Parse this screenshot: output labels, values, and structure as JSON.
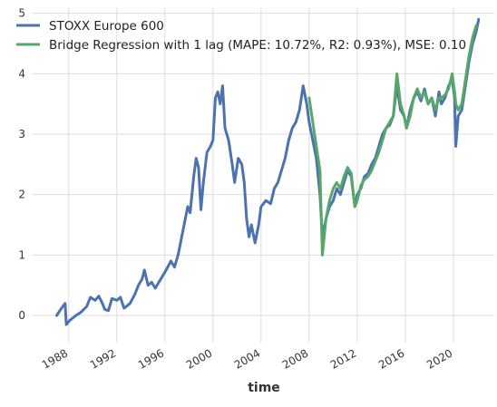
{
  "chart_data": {
    "type": "line",
    "title": "",
    "xlabel": "time",
    "ylabel": "",
    "xlim": [
      1985.0,
      2023.4
    ],
    "ylim": [
      -0.45,
      5.1
    ],
    "grid": true,
    "legend_placement": "top-left",
    "x_ticks": [
      1988,
      1992,
      1996,
      2000,
      2004,
      2008,
      2012,
      2016,
      2020
    ],
    "x_tick_labels": [
      "1988",
      "1992",
      "1996",
      "2000",
      "2004",
      "2008",
      "2012",
      "2016",
      "2020"
    ],
    "y_ticks": [
      0,
      1,
      2,
      3,
      4,
      5
    ],
    "y_tick_labels": [
      "0",
      "1",
      "2",
      "3",
      "4",
      "5"
    ],
    "series": [
      {
        "name": "STOXX Europe 600",
        "color": "#4c72b0",
        "x": [
          1987.0,
          1987.4,
          1987.7,
          1987.8,
          1988.1,
          1988.6,
          1989.0,
          1989.5,
          1989.8,
          1990.2,
          1990.5,
          1990.8,
          1991.0,
          1991.3,
          1991.6,
          1992.0,
          1992.3,
          1992.6,
          1992.8,
          1993.1,
          1993.5,
          1993.8,
          1994.1,
          1994.3,
          1994.6,
          1994.9,
          1995.2,
          1995.5,
          1995.8,
          1996.1,
          1996.5,
          1996.8,
          1997.1,
          1997.4,
          1997.7,
          1997.9,
          1998.1,
          1998.4,
          1998.6,
          1998.8,
          1999.0,
          1999.2,
          1999.5,
          1999.8,
          2000.0,
          2000.2,
          2000.4,
          2000.6,
          2000.8,
          2001.0,
          2001.3,
          2001.6,
          2001.8,
          2002.1,
          2002.4,
          2002.6,
          2002.8,
          2003.0,
          2003.2,
          2003.5,
          2003.8,
          2004.0,
          2004.4,
          2004.8,
          2005.1,
          2005.4,
          2005.7,
          2006.0,
          2006.3,
          2006.6,
          2006.9,
          2007.2,
          2007.5,
          2007.8,
          2008.0,
          2008.3,
          2008.6,
          2008.9,
          2009.1,
          2009.4,
          2009.7,
          2010.0,
          2010.3,
          2010.6,
          2010.9,
          2011.2,
          2011.5,
          2011.8,
          2012.0,
          2012.3,
          2012.6,
          2012.9,
          2013.2,
          2013.5,
          2013.8,
          2014.1,
          2014.4,
          2014.7,
          2015.0,
          2015.3,
          2015.6,
          2015.9,
          2016.1,
          2016.4,
          2016.7,
          2017.0,
          2017.3,
          2017.6,
          2017.9,
          2018.2,
          2018.5,
          2018.8,
          2019.0,
          2019.3,
          2019.6,
          2019.9,
          2020.1,
          2020.2,
          2020.4,
          2020.7,
          2021.0,
          2021.3,
          2021.6,
          2021.9,
          2022.1
        ],
        "y": [
          0.0,
          0.12,
          0.2,
          -0.15,
          -0.08,
          0.0,
          0.05,
          0.15,
          0.3,
          0.25,
          0.32,
          0.2,
          0.1,
          0.08,
          0.28,
          0.25,
          0.3,
          0.12,
          0.15,
          0.2,
          0.35,
          0.5,
          0.6,
          0.75,
          0.5,
          0.55,
          0.45,
          0.55,
          0.65,
          0.75,
          0.9,
          0.8,
          1.0,
          1.3,
          1.6,
          1.8,
          1.7,
          2.3,
          2.6,
          2.45,
          1.75,
          2.2,
          2.7,
          2.8,
          2.9,
          3.6,
          3.7,
          3.5,
          3.8,
          3.1,
          2.9,
          2.5,
          2.2,
          2.6,
          2.5,
          2.2,
          1.6,
          1.3,
          1.5,
          1.2,
          1.5,
          1.8,
          1.9,
          1.85,
          2.1,
          2.2,
          2.4,
          2.6,
          2.9,
          3.1,
          3.2,
          3.4,
          3.8,
          3.5,
          3.2,
          2.9,
          2.6,
          2.0,
          1.3,
          1.6,
          1.8,
          1.9,
          2.1,
          2.0,
          2.2,
          2.4,
          2.3,
          1.8,
          2.0,
          2.1,
          2.3,
          2.35,
          2.5,
          2.6,
          2.8,
          3.0,
          3.1,
          3.15,
          3.3,
          3.8,
          3.4,
          3.3,
          3.1,
          3.4,
          3.6,
          3.7,
          3.55,
          3.75,
          3.5,
          3.6,
          3.3,
          3.7,
          3.5,
          3.6,
          3.8,
          3.9,
          3.6,
          2.8,
          3.3,
          3.4,
          3.8,
          4.2,
          4.5,
          4.7,
          4.9
        ]
      },
      {
        "name": "Bridge Regression with 1 lag (MAPE: 10.72%, R2: 0.93%), MSE: 0.10",
        "color": "#55a868",
        "x": [
          2008.0,
          2008.3,
          2008.6,
          2008.9,
          2009.1,
          2009.4,
          2009.7,
          2010.0,
          2010.3,
          2010.6,
          2010.9,
          2011.2,
          2011.5,
          2011.8,
          2012.0,
          2012.3,
          2012.6,
          2012.9,
          2013.2,
          2013.5,
          2013.8,
          2014.1,
          2014.4,
          2014.7,
          2015.0,
          2015.3,
          2015.6,
          2015.9,
          2016.1,
          2016.4,
          2016.7,
          2017.0,
          2017.3,
          2017.6,
          2017.9,
          2018.2,
          2018.5,
          2018.8,
          2019.0,
          2019.3,
          2019.6,
          2019.9,
          2020.1,
          2020.2,
          2020.4,
          2020.7,
          2021.0,
          2021.3,
          2021.6,
          2021.9
        ],
        "y": [
          3.6,
          3.2,
          2.8,
          2.4,
          1.0,
          1.6,
          1.9,
          2.1,
          2.2,
          2.1,
          2.3,
          2.45,
          2.35,
          1.8,
          1.9,
          2.15,
          2.25,
          2.3,
          2.4,
          2.55,
          2.7,
          2.9,
          3.1,
          3.2,
          3.3,
          4.0,
          3.5,
          3.3,
          3.1,
          3.3,
          3.6,
          3.75,
          3.6,
          3.7,
          3.5,
          3.6,
          3.4,
          3.6,
          3.6,
          3.65,
          3.75,
          4.0,
          3.7,
          3.5,
          3.4,
          3.5,
          3.9,
          4.3,
          4.6,
          4.8
        ]
      }
    ]
  }
}
